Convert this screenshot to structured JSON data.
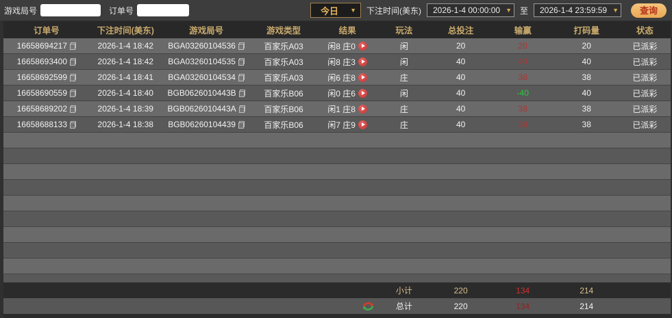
{
  "toolbar": {
    "game_round_label": "游戏局号",
    "order_label": "订单号",
    "game_round_value": "",
    "order_value": "",
    "range_selected": "今日",
    "bet_time_label": "下注时间(美东)",
    "start_time": "2026-1-4 00:00:00",
    "to_label": "至",
    "end_time": "2026-1-4 23:59:59",
    "query_button": "查询"
  },
  "table": {
    "headers": [
      "订单号",
      "下注时间(美东)",
      "游戏局号",
      "游戏类型",
      "结果",
      "玩法",
      "总投注",
      "输赢",
      "打码量",
      "状态"
    ],
    "rows": [
      {
        "order_id": "16658694217",
        "bet_time": "2026-1-4 18:42",
        "round_id": "BGA03260104536",
        "game_type": "百家乐A03",
        "result": "闲8 庄0",
        "play": "闲",
        "total_bet": "20",
        "win_loss": "20",
        "win_class": "win-red",
        "turnover": "20",
        "status": "已派彩"
      },
      {
        "order_id": "16658693400",
        "bet_time": "2026-1-4 18:42",
        "round_id": "BGA03260104535",
        "game_type": "百家乐A03",
        "result": "闲8 庄3",
        "play": "闲",
        "total_bet": "40",
        "win_loss": "40",
        "win_class": "win-red",
        "turnover": "40",
        "status": "已派彩"
      },
      {
        "order_id": "16658692599",
        "bet_time": "2026-1-4 18:41",
        "round_id": "BGA03260104534",
        "game_type": "百家乐A03",
        "result": "闲6 庄8",
        "play": "庄",
        "total_bet": "40",
        "win_loss": "38",
        "win_class": "win-red",
        "turnover": "38",
        "status": "已派彩"
      },
      {
        "order_id": "16658690559",
        "bet_time": "2026-1-4 18:40",
        "round_id": "BGB0626010443B",
        "game_type": "百家乐B06",
        "result": "闲0 庄6",
        "play": "闲",
        "total_bet": "40",
        "win_loss": "-40",
        "win_class": "win-green",
        "turnover": "40",
        "status": "已派彩"
      },
      {
        "order_id": "16658689202",
        "bet_time": "2026-1-4 18:39",
        "round_id": "BGB0626010443A",
        "game_type": "百家乐B06",
        "result": "闲1 庄8",
        "play": "庄",
        "total_bet": "40",
        "win_loss": "38",
        "win_class": "win-red",
        "turnover": "38",
        "status": "已派彩"
      },
      {
        "order_id": "16658688133",
        "bet_time": "2026-1-4 18:38",
        "round_id": "BGB06260104439",
        "game_type": "百家乐B06",
        "result": "闲7 庄9",
        "play": "庄",
        "total_bet": "40",
        "win_loss": "38",
        "win_class": "win-red",
        "turnover": "38",
        "status": "已派彩"
      }
    ],
    "subtotal": {
      "label": "小计",
      "total_bet": "220",
      "win_loss": "134",
      "turnover": "214"
    },
    "grand_total": {
      "label": "总计",
      "total_bet": "220",
      "win_loss": "134",
      "turnover": "214"
    }
  },
  "icons": {
    "copy": "copy-icon",
    "replay": "play-icon",
    "swap": "swap-refresh-icon",
    "dropdown": "chevron-down-icon"
  },
  "colors": {
    "accent_gold": "#c9aa6d",
    "win_positive_red": "#b33131",
    "win_negative_green": "#27c93f",
    "query_button_bg": "#edb267",
    "query_button_text": "#b5321c",
    "row_light": "#6a6a6a",
    "row_dark": "#595959"
  }
}
